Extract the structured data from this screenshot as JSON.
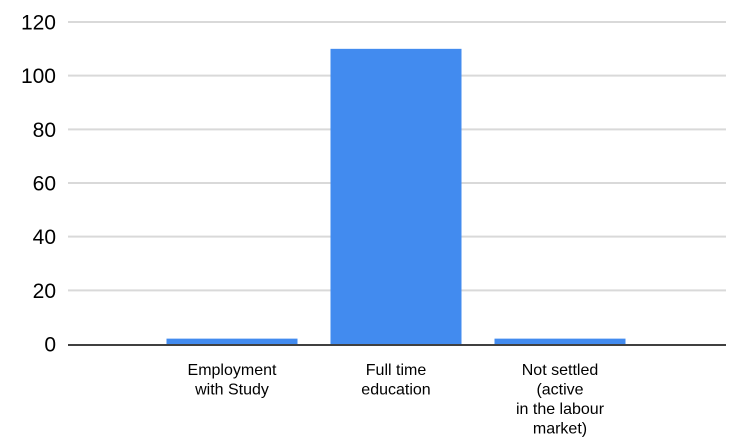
{
  "chart_data": {
    "type": "bar",
    "title": "",
    "xlabel": "",
    "ylabel": "",
    "categories": [
      [
        "Employment",
        "with Study"
      ],
      [
        "Full time",
        "education"
      ],
      [
        "Not settled",
        "(active",
        "in the labour",
        "market)"
      ]
    ],
    "values": [
      2,
      110,
      2
    ],
    "ylim": [
      0,
      120
    ],
    "yticks": [
      0,
      20,
      40,
      60,
      80,
      100,
      120
    ],
    "grid": true,
    "legend": "none",
    "bar_color": "#428BEF"
  }
}
